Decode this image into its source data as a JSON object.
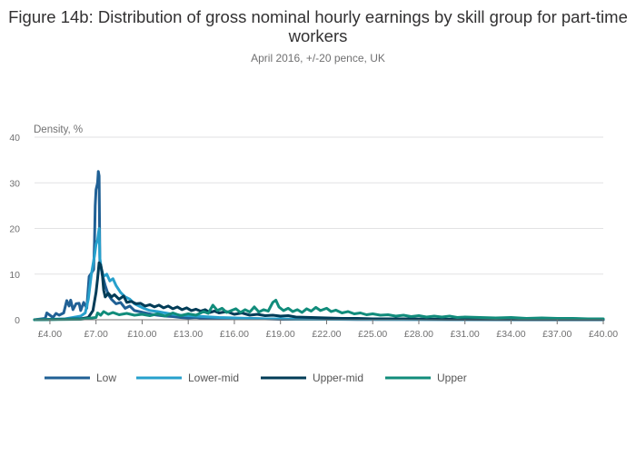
{
  "chart_data": {
    "type": "line",
    "title": "Figure 14b: Distribution of gross nominal hourly earnings by skill group for part-time workers",
    "subtitle": "April 2016, +/-20 pence, UK",
    "ylabel": "Density, %",
    "xlabel": "",
    "xlim": [
      3.0,
      40.0
    ],
    "ylim": [
      0,
      40
    ],
    "y_ticks": [
      0,
      10,
      20,
      30,
      40
    ],
    "x_ticks": [
      {
        "value": 4,
        "label": "£4.00"
      },
      {
        "value": 7,
        "label": "£7.00"
      },
      {
        "value": 10,
        "label": "£10.00"
      },
      {
        "value": 13,
        "label": "£13.00"
      },
      {
        "value": 16,
        "label": "£16.00"
      },
      {
        "value": 19,
        "label": "£19.00"
      },
      {
        "value": 22,
        "label": "£22.00"
      },
      {
        "value": 25,
        "label": "£25.00"
      },
      {
        "value": 28,
        "label": "£28.00"
      },
      {
        "value": 31,
        "label": "£31.00"
      },
      {
        "value": 34,
        "label": "£34.00"
      },
      {
        "value": 37,
        "label": "£37.00"
      },
      {
        "value": 40,
        "label": "£40.00"
      }
    ],
    "grid": "horizontal",
    "legend_position": "bottom-left",
    "series": [
      {
        "name": "Low",
        "color": "#206095",
        "points": [
          [
            3.0,
            0
          ],
          [
            3.7,
            0.3
          ],
          [
            3.8,
            1.5
          ],
          [
            4.0,
            1.0
          ],
          [
            4.2,
            0.5
          ],
          [
            4.4,
            1.4
          ],
          [
            4.6,
            1.0
          ],
          [
            4.9,
            1.5
          ],
          [
            5.1,
            4.2
          ],
          [
            5.25,
            3.0
          ],
          [
            5.35,
            4.3
          ],
          [
            5.5,
            2.2
          ],
          [
            5.7,
            3.5
          ],
          [
            5.9,
            3.6
          ],
          [
            6.0,
            2.0
          ],
          [
            6.2,
            3.8
          ],
          [
            6.4,
            2.5
          ],
          [
            6.55,
            9.5
          ],
          [
            6.7,
            10.2
          ],
          [
            6.85,
            11.0
          ],
          [
            6.9,
            17.0
          ],
          [
            6.95,
            25.0
          ],
          [
            7.0,
            28.5
          ],
          [
            7.1,
            30.0
          ],
          [
            7.15,
            32.5
          ],
          [
            7.2,
            31.5
          ],
          [
            7.25,
            13.0
          ],
          [
            7.4,
            10.0
          ],
          [
            7.6,
            7.5
          ],
          [
            7.8,
            5.5
          ],
          [
            8.0,
            4.5
          ],
          [
            8.3,
            3.5
          ],
          [
            8.6,
            3.8
          ],
          [
            8.9,
            2.5
          ],
          [
            9.2,
            3.0
          ],
          [
            9.5,
            2.0
          ],
          [
            9.8,
            1.8
          ],
          [
            10.2,
            1.5
          ],
          [
            10.6,
            1.2
          ],
          [
            11.0,
            1.0
          ],
          [
            11.5,
            0.8
          ],
          [
            12.0,
            0.7
          ],
          [
            12.5,
            0.5
          ],
          [
            13.0,
            0.4
          ],
          [
            13.5,
            0.5
          ],
          [
            14.0,
            0.3
          ],
          [
            14.5,
            0.3
          ],
          [
            15.0,
            0.3
          ],
          [
            16.0,
            0.2
          ],
          [
            17.0,
            0.3
          ],
          [
            18.0,
            0.2
          ],
          [
            19.0,
            0.1
          ],
          [
            20.0,
            0.1
          ],
          [
            22.0,
            0.1
          ],
          [
            24.0,
            0.05
          ],
          [
            28.0,
            0.05
          ],
          [
            32.0,
            0.02
          ],
          [
            36.0,
            0.02
          ],
          [
            40.0,
            0.02
          ]
        ]
      },
      {
        "name": "Lower-mid",
        "color": "#27a0cc",
        "points": [
          [
            3.0,
            0
          ],
          [
            5.0,
            0.2
          ],
          [
            5.5,
            0.5
          ],
          [
            6.0,
            0.8
          ],
          [
            6.3,
            1.5
          ],
          [
            6.5,
            4.5
          ],
          [
            6.7,
            10.0
          ],
          [
            6.9,
            14.0
          ],
          [
            7.0,
            16.5
          ],
          [
            7.1,
            17.5
          ],
          [
            7.2,
            20.0
          ],
          [
            7.25,
            13.5
          ],
          [
            7.35,
            11.0
          ],
          [
            7.5,
            9.5
          ],
          [
            7.7,
            10.0
          ],
          [
            7.9,
            8.5
          ],
          [
            8.1,
            9.0
          ],
          [
            8.3,
            7.5
          ],
          [
            8.6,
            6.0
          ],
          [
            8.9,
            5.0
          ],
          [
            9.2,
            4.5
          ],
          [
            9.5,
            3.5
          ],
          [
            9.8,
            3.0
          ],
          [
            10.1,
            2.5
          ],
          [
            10.5,
            2.0
          ],
          [
            11.0,
            1.8
          ],
          [
            11.5,
            1.5
          ],
          [
            12.0,
            1.2
          ],
          [
            12.5,
            1.0
          ],
          [
            13.0,
            0.9
          ],
          [
            13.5,
            0.8
          ],
          [
            14.0,
            0.7
          ],
          [
            15.0,
            0.5
          ],
          [
            16.0,
            0.4
          ],
          [
            17.0,
            0.3
          ],
          [
            18.0,
            0.2
          ],
          [
            19.0,
            0.2
          ],
          [
            20.0,
            0.1
          ],
          [
            22.0,
            0.1
          ],
          [
            25.0,
            0.1
          ],
          [
            30.0,
            0.05
          ],
          [
            35.0,
            0.02
          ],
          [
            40.0,
            0.02
          ]
        ]
      },
      {
        "name": "Upper-mid",
        "color": "#003c57",
        "points": [
          [
            3.0,
            0
          ],
          [
            6.0,
            0.2
          ],
          [
            6.5,
            0.5
          ],
          [
            6.8,
            2.0
          ],
          [
            7.0,
            6.0
          ],
          [
            7.1,
            9.0
          ],
          [
            7.2,
            12.5
          ],
          [
            7.3,
            12.0
          ],
          [
            7.4,
            10.5
          ],
          [
            7.5,
            6.5
          ],
          [
            7.6,
            5.0
          ],
          [
            7.8,
            5.8
          ],
          [
            8.0,
            5.0
          ],
          [
            8.2,
            5.5
          ],
          [
            8.5,
            4.5
          ],
          [
            8.8,
            5.2
          ],
          [
            9.0,
            3.8
          ],
          [
            9.3,
            4.0
          ],
          [
            9.6,
            3.5
          ],
          [
            9.9,
            3.6
          ],
          [
            10.2,
            3.0
          ],
          [
            10.5,
            3.3
          ],
          [
            10.8,
            2.8
          ],
          [
            11.1,
            3.2
          ],
          [
            11.4,
            2.6
          ],
          [
            11.7,
            3.0
          ],
          [
            12.0,
            2.4
          ],
          [
            12.3,
            2.8
          ],
          [
            12.6,
            2.2
          ],
          [
            12.9,
            2.6
          ],
          [
            13.2,
            2.0
          ],
          [
            13.5,
            2.3
          ],
          [
            13.8,
            1.9
          ],
          [
            14.1,
            2.2
          ],
          [
            14.4,
            1.6
          ],
          [
            14.7,
            1.9
          ],
          [
            15.0,
            1.5
          ],
          [
            15.5,
            1.8
          ],
          [
            16.0,
            1.2
          ],
          [
            16.5,
            1.5
          ],
          [
            17.0,
            1.0
          ],
          [
            17.5,
            1.2
          ],
          [
            18.0,
            0.9
          ],
          [
            18.5,
            1.0
          ],
          [
            19.0,
            0.8
          ],
          [
            19.5,
            0.9
          ],
          [
            20.0,
            0.6
          ],
          [
            21.0,
            0.5
          ],
          [
            22.0,
            0.4
          ],
          [
            23.0,
            0.3
          ],
          [
            24.0,
            0.3
          ],
          [
            25.0,
            0.2
          ],
          [
            27.0,
            0.2
          ],
          [
            30.0,
            0.1
          ],
          [
            35.0,
            0.05
          ],
          [
            40.0,
            0.05
          ]
        ]
      },
      {
        "name": "Upper",
        "color": "#118c7b",
        "points": [
          [
            3.0,
            0
          ],
          [
            6.0,
            0.1
          ],
          [
            6.5,
            0.3
          ],
          [
            7.0,
            0.5
          ],
          [
            7.1,
            1.5
          ],
          [
            7.3,
            1.0
          ],
          [
            7.5,
            1.8
          ],
          [
            7.8,
            1.2
          ],
          [
            8.1,
            1.6
          ],
          [
            8.5,
            1.1
          ],
          [
            9.0,
            1.4
          ],
          [
            9.5,
            1.0
          ],
          [
            10.0,
            1.2
          ],
          [
            10.5,
            0.9
          ],
          [
            11.0,
            1.3
          ],
          [
            11.5,
            0.8
          ],
          [
            12.0,
            1.5
          ],
          [
            12.5,
            0.9
          ],
          [
            13.0,
            1.3
          ],
          [
            13.5,
            1.0
          ],
          [
            14.0,
            1.8
          ],
          [
            14.3,
            1.4
          ],
          [
            14.6,
            3.2
          ],
          [
            14.9,
            2.0
          ],
          [
            15.2,
            2.5
          ],
          [
            15.5,
            1.6
          ],
          [
            15.8,
            2.0
          ],
          [
            16.1,
            2.4
          ],
          [
            16.4,
            1.6
          ],
          [
            16.7,
            2.2
          ],
          [
            17.0,
            1.7
          ],
          [
            17.3,
            2.8
          ],
          [
            17.6,
            1.7
          ],
          [
            17.9,
            2.2
          ],
          [
            18.2,
            1.9
          ],
          [
            18.5,
            3.8
          ],
          [
            18.7,
            4.3
          ],
          [
            18.9,
            2.8
          ],
          [
            19.2,
            2.0
          ],
          [
            19.5,
            2.5
          ],
          [
            19.8,
            1.8
          ],
          [
            20.1,
            2.2
          ],
          [
            20.4,
            1.6
          ],
          [
            20.7,
            2.4
          ],
          [
            21.0,
            1.9
          ],
          [
            21.3,
            2.7
          ],
          [
            21.6,
            2.0
          ],
          [
            22.0,
            2.5
          ],
          [
            22.3,
            1.8
          ],
          [
            22.6,
            2.1
          ],
          [
            23.0,
            1.5
          ],
          [
            23.4,
            1.8
          ],
          [
            23.8,
            1.3
          ],
          [
            24.2,
            1.5
          ],
          [
            24.6,
            1.1
          ],
          [
            25.0,
            1.3
          ],
          [
            25.5,
            1.0
          ],
          [
            26.0,
            1.1
          ],
          [
            26.5,
            0.8
          ],
          [
            27.0,
            1.0
          ],
          [
            27.5,
            0.7
          ],
          [
            28.0,
            0.9
          ],
          [
            28.5,
            0.6
          ],
          [
            29.0,
            0.8
          ],
          [
            29.5,
            0.6
          ],
          [
            30.0,
            0.8
          ],
          [
            30.5,
            0.5
          ],
          [
            31.0,
            0.6
          ],
          [
            32.0,
            0.5
          ],
          [
            33.0,
            0.4
          ],
          [
            34.0,
            0.5
          ],
          [
            35.0,
            0.3
          ],
          [
            36.0,
            0.4
          ],
          [
            37.0,
            0.3
          ],
          [
            38.0,
            0.3
          ],
          [
            39.0,
            0.2
          ],
          [
            40.0,
            0.2
          ]
        ]
      }
    ]
  }
}
